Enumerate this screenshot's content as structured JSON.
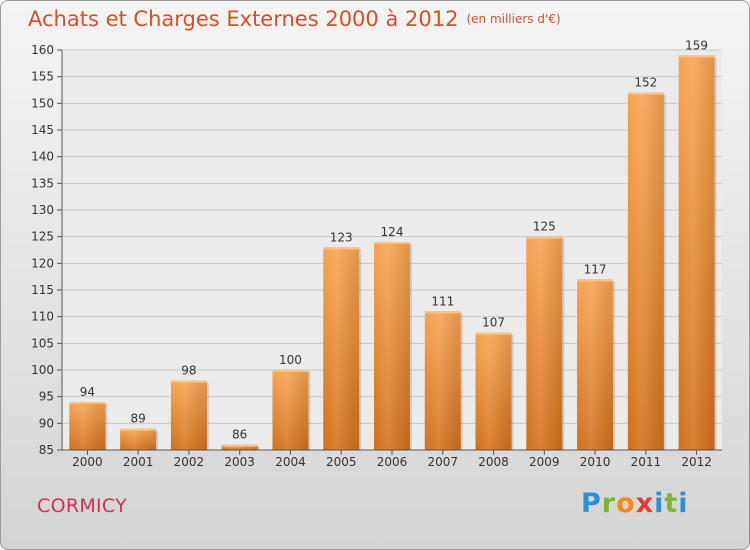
{
  "title": "Achats et Charges Externes 2000 à 2012",
  "subtitle": "(en milliers d'€)",
  "location": "CORMICY",
  "logo": {
    "letters": [
      "P",
      "r",
      "o",
      "x",
      "i",
      "t",
      "i"
    ],
    "colors": [
      "#2d8fd8",
      "#7cb82f",
      "#f28a1c",
      "#e23b30",
      "#2d8fd8",
      "#7cb82f",
      "#2d8fd8"
    ]
  },
  "chart_data": {
    "type": "bar",
    "title": "Achats et Charges Externes 2000 à 2012",
    "subtitle": "(en milliers d'€)",
    "categories": [
      "2000",
      "2001",
      "2002",
      "2003",
      "2004",
      "2005",
      "2006",
      "2007",
      "2008",
      "2009",
      "2010",
      "2011",
      "2012"
    ],
    "values": [
      94,
      89,
      98,
      86,
      100,
      123,
      124,
      111,
      107,
      125,
      117,
      152,
      159
    ],
    "ylim": [
      85,
      160
    ],
    "yticks": [
      85,
      90,
      95,
      100,
      105,
      110,
      115,
      120,
      125,
      130,
      135,
      140,
      145,
      150,
      155,
      160
    ],
    "grid": true,
    "bar_color": "#f0923a"
  }
}
